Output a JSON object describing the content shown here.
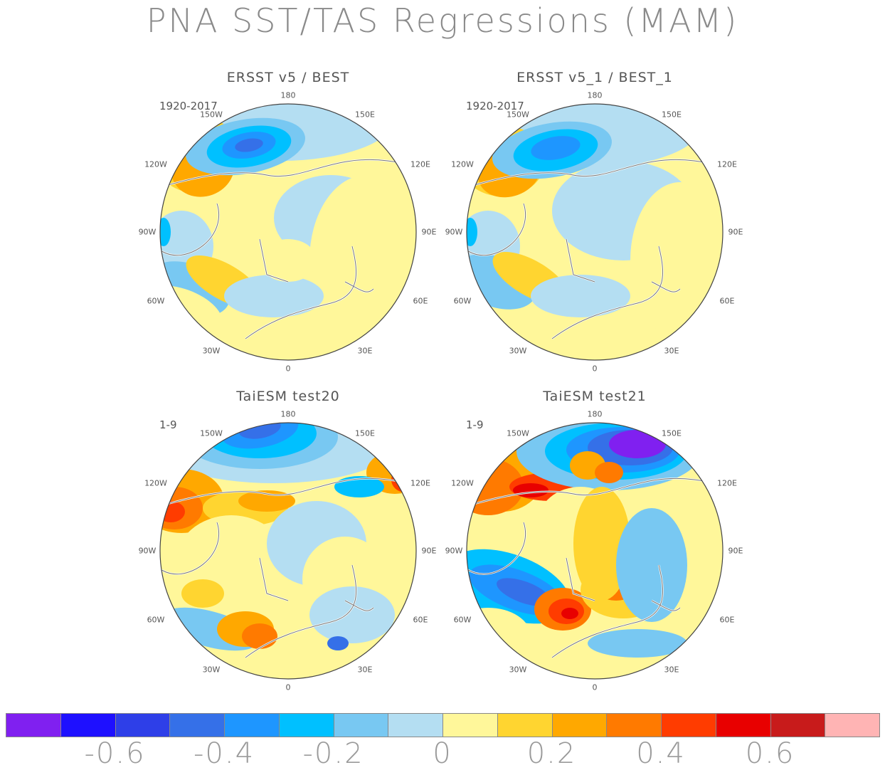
{
  "title": "PNA SST/TAS Regressions (MAM)",
  "panels": [
    {
      "title": "ERSST v5 / BEST",
      "period": "1920-2017"
    },
    {
      "title": "ERSST v5_1 / BEST_1",
      "period": "1920-2017"
    },
    {
      "title": "TaiESM test20",
      "period": "1-9"
    },
    {
      "title": "TaiESM test21",
      "period": "1-9"
    }
  ],
  "longitude_labels": {
    "top": "180",
    "tl": "150W",
    "tr": "150E",
    "ul": "120W",
    "ur": "120E",
    "ml": "90W",
    "mr": "90E",
    "ll": "60W",
    "lr": "60E",
    "bl": "30W",
    "br": "30E",
    "bottom": "0"
  },
  "colorbar": {
    "colors": [
      "#8020f0",
      "#1e10ff",
      "#2e3fe8",
      "#3570e8",
      "#1e96ff",
      "#00c0ff",
      "#78c8f2",
      "#b4def2",
      "#fff79a",
      "#ffd530",
      "#ffa800",
      "#ff7a00",
      "#ff3c00",
      "#e80000",
      "#c81b1b",
      "#ffb4b4"
    ],
    "labels": [
      "-0.6",
      "-0.4",
      "-0.2",
      "0",
      "0.2",
      "0.4",
      "0.6"
    ]
  }
}
